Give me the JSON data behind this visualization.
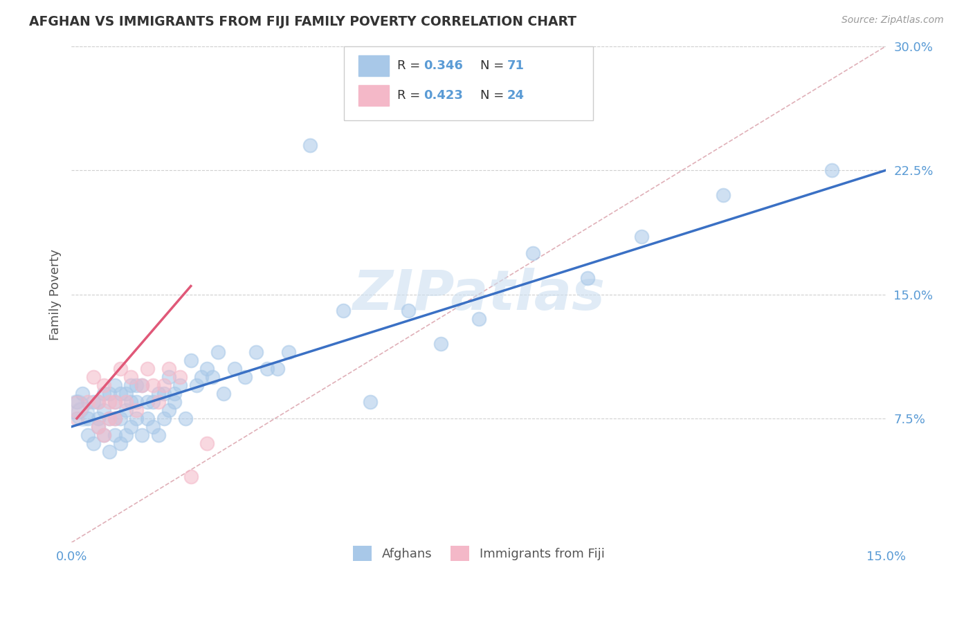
{
  "title": "AFGHAN VS IMMIGRANTS FROM FIJI FAMILY POVERTY CORRELATION CHART",
  "source": "Source: ZipAtlas.com",
  "ylabel_label": "Family Poverty",
  "xlim": [
    0.0,
    0.15
  ],
  "ylim": [
    0.0,
    0.3
  ],
  "xtick_vals": [
    0.0,
    0.15
  ],
  "xtick_labels": [
    "0.0%",
    "15.0%"
  ],
  "ytick_vals": [
    0.075,
    0.15,
    0.225,
    0.3
  ],
  "ytick_labels": [
    "7.5%",
    "15.0%",
    "22.5%",
    "30.0%"
  ],
  "legend_r1": "0.346",
  "legend_n1": "71",
  "legend_r2": "0.423",
  "legend_n2": "24",
  "color_blue": "#a8c8e8",
  "color_pink": "#f4b8c8",
  "line_blue": "#3a70c4",
  "line_pink": "#e05878",
  "line_diag_color": "#e0b0b8",
  "tick_color": "#5a9bd5",
  "watermark_color": "#ccdff0",
  "afghans_x": [
    0.001,
    0.002,
    0.003,
    0.003,
    0.004,
    0.004,
    0.005,
    0.005,
    0.005,
    0.006,
    0.006,
    0.006,
    0.007,
    0.007,
    0.007,
    0.008,
    0.008,
    0.008,
    0.008,
    0.009,
    0.009,
    0.009,
    0.01,
    0.01,
    0.01,
    0.011,
    0.011,
    0.011,
    0.012,
    0.012,
    0.012,
    0.013,
    0.013,
    0.014,
    0.014,
    0.015,
    0.015,
    0.016,
    0.016,
    0.017,
    0.017,
    0.018,
    0.018,
    0.019,
    0.019,
    0.02,
    0.021,
    0.022,
    0.023,
    0.024,
    0.025,
    0.026,
    0.027,
    0.028,
    0.03,
    0.032,
    0.034,
    0.036,
    0.038,
    0.04,
    0.044,
    0.05,
    0.055,
    0.062,
    0.068,
    0.075,
    0.085,
    0.095,
    0.105,
    0.12,
    0.14
  ],
  "afghans_y": [
    0.085,
    0.09,
    0.065,
    0.075,
    0.06,
    0.085,
    0.07,
    0.085,
    0.075,
    0.065,
    0.08,
    0.09,
    0.055,
    0.075,
    0.09,
    0.065,
    0.075,
    0.085,
    0.095,
    0.06,
    0.075,
    0.09,
    0.065,
    0.08,
    0.09,
    0.07,
    0.085,
    0.095,
    0.075,
    0.085,
    0.095,
    0.065,
    0.095,
    0.075,
    0.085,
    0.07,
    0.085,
    0.065,
    0.09,
    0.075,
    0.09,
    0.08,
    0.1,
    0.085,
    0.09,
    0.095,
    0.075,
    0.11,
    0.095,
    0.1,
    0.105,
    0.1,
    0.115,
    0.09,
    0.105,
    0.1,
    0.115,
    0.105,
    0.105,
    0.115,
    0.24,
    0.14,
    0.085,
    0.14,
    0.12,
    0.135,
    0.175,
    0.16,
    0.185,
    0.21,
    0.225
  ],
  "fiji_x": [
    0.001,
    0.003,
    0.004,
    0.005,
    0.005,
    0.006,
    0.006,
    0.007,
    0.007,
    0.008,
    0.008,
    0.009,
    0.01,
    0.011,
    0.012,
    0.013,
    0.014,
    0.015,
    0.016,
    0.017,
    0.018,
    0.02,
    0.022,
    0.025
  ],
  "fiji_y": [
    0.075,
    0.085,
    0.1,
    0.07,
    0.085,
    0.065,
    0.095,
    0.075,
    0.085,
    0.075,
    0.085,
    0.105,
    0.085,
    0.1,
    0.08,
    0.095,
    0.105,
    0.095,
    0.085,
    0.095,
    0.105,
    0.1,
    0.04,
    0.06
  ],
  "blue_line_x0": 0.0,
  "blue_line_y0": 0.07,
  "blue_line_x1": 0.15,
  "blue_line_y1": 0.225,
  "pink_line_x0": 0.001,
  "pink_line_y0": 0.075,
  "pink_line_x1": 0.022,
  "pink_line_y1": 0.155
}
